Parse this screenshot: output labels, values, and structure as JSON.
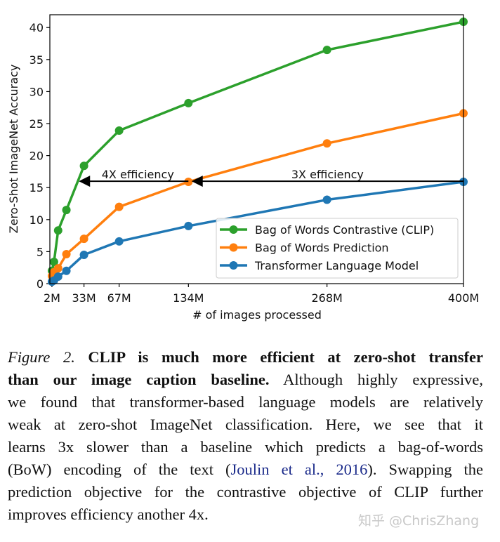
{
  "chart_data": {
    "type": "line",
    "xlabel": "# of images processed",
    "ylabel": "Zero-Shot ImageNet Accuracy",
    "xlim": [
      0,
      400
    ],
    "ylim": [
      0,
      42
    ],
    "x_ticks": [
      2,
      33,
      67,
      134,
      268,
      400
    ],
    "x_tick_labels": [
      "2M",
      "33M",
      "67M",
      "134M",
      "268M",
      "400M"
    ],
    "y_ticks": [
      0,
      5,
      10,
      15,
      20,
      25,
      30,
      35,
      40
    ],
    "y_tick_labels": [
      "0",
      "5",
      "10",
      "15",
      "20",
      "25",
      "30",
      "35",
      "40"
    ],
    "grid": false,
    "legend_position": "lower-right",
    "x": [
      2,
      4,
      8,
      16,
      33,
      67,
      134,
      268,
      400
    ],
    "series": [
      {
        "name": "Bag of Words Contrastive (CLIP)",
        "color": "#2ca02c",
        "values": [
          2.0,
          3.4,
          8.3,
          11.5,
          18.4,
          23.9,
          28.2,
          36.5,
          40.9
        ]
      },
      {
        "name": "Bag of Words Prediction",
        "color": "#ff7f0e",
        "values": [
          1.2,
          1.8,
          2.4,
          4.6,
          7.0,
          12.0,
          15.9,
          21.9,
          26.6
        ]
      },
      {
        "name": "Transformer Language Model",
        "color": "#1f77b4",
        "values": [
          0.3,
          0.5,
          1.1,
          2.0,
          4.5,
          6.6,
          9.0,
          13.1,
          15.9
        ]
      }
    ],
    "annotations": [
      {
        "text": "4X efficiency",
        "y": 16,
        "from_x": 134,
        "to_x": 28
      },
      {
        "text": "3X efficiency",
        "y": 16,
        "from_x": 400,
        "to_x": 137
      }
    ]
  },
  "caption": {
    "lines": [
      [
        {
          "t": "Figure 2. ",
          "s": "it"
        },
        {
          "t": "CLIP is much more efficient at zero-shot transfer",
          "s": "bd"
        }
      ],
      [
        {
          "t": "than our image caption baseline.",
          "s": "bd"
        },
        {
          "t": "  Although highly expressive,",
          "s": ""
        }
      ],
      [
        {
          "t": "we found that transformer-based language models are relatively",
          "s": ""
        }
      ],
      [
        {
          "t": "weak at zero-shot ImageNet classification.  Here, we see that it",
          "s": ""
        }
      ],
      [
        {
          "t": "learns 3x slower than a baseline which predicts a bag-of-words",
          "s": ""
        }
      ],
      [
        {
          "t": "(BoW) encoding of the text (",
          "s": ""
        },
        {
          "t": "Joulin et al., 2016",
          "s": "ln"
        },
        {
          "t": ").  Swapping the",
          "s": ""
        }
      ],
      [
        {
          "t": "prediction objective for the contrastive objective of CLIP further",
          "s": ""
        }
      ],
      [
        {
          "t": "improves efficiency another 4x.",
          "s": ""
        }
      ]
    ]
  },
  "watermark": "知乎 @ChrisZhang"
}
